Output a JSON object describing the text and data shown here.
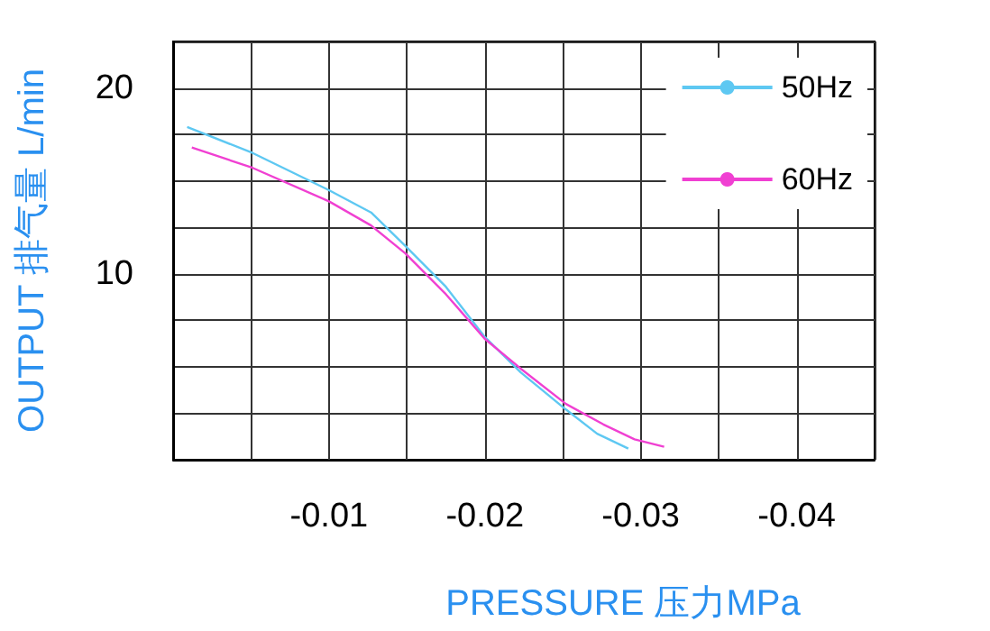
{
  "chart_data": {
    "type": "line",
    "xlabel": "PRESSURE 压力MPa",
    "ylabel": "OUTPUT 排气量 L/min",
    "xlim": [
      0,
      -0.045
    ],
    "ylim": [
      0,
      22.5
    ],
    "xticks": [
      {
        "value": 0,
        "label": null
      },
      {
        "value": -0.005,
        "label": null
      },
      -0.01,
      {
        "value": -0.015,
        "label": null
      },
      -0.02,
      {
        "value": -0.025,
        "label": null
      },
      -0.03,
      {
        "value": -0.035,
        "label": null
      },
      -0.04,
      {
        "value": -0.045,
        "label": null
      }
    ],
    "yticks": [
      {
        "value": 0,
        "label": null
      },
      {
        "value": 2.5,
        "label": null
      },
      {
        "value": 5,
        "label": null
      },
      {
        "value": 7.5,
        "label": null
      },
      10,
      {
        "value": 12.5,
        "label": null
      },
      {
        "value": 15,
        "label": null
      },
      {
        "value": 17.5,
        "label": null
      },
      20,
      {
        "value": 22.5,
        "label": null
      }
    ],
    "grid": true,
    "legend": "top right",
    "marker": "none",
    "line_style": "solid",
    "series": [
      {
        "name": "50Hz",
        "color": "#5ec8f2",
        "x": [
          -0.0009,
          -0.0051,
          -0.01,
          -0.0127,
          -0.0149,
          -0.0175,
          -0.02,
          -0.0223,
          -0.0252,
          -0.0272,
          -0.0292
        ],
        "values": [
          17.9,
          16.5,
          14.5,
          13.3,
          11.5,
          9.3,
          6.6,
          4.7,
          2.7,
          1.4,
          0.6
        ]
      },
      {
        "name": "60Hz",
        "color": "#f040d2",
        "x": [
          -0.0012,
          -0.0051,
          -0.01,
          -0.0127,
          -0.0149,
          -0.0175,
          -0.02,
          -0.0223,
          -0.0252,
          -0.0276,
          -0.0296,
          -0.0315
        ],
        "values": [
          16.8,
          15.7,
          13.9,
          12.6,
          11.1,
          8.9,
          6.5,
          4.9,
          3,
          1.9,
          1.1,
          0.7
        ]
      }
    ]
  }
}
